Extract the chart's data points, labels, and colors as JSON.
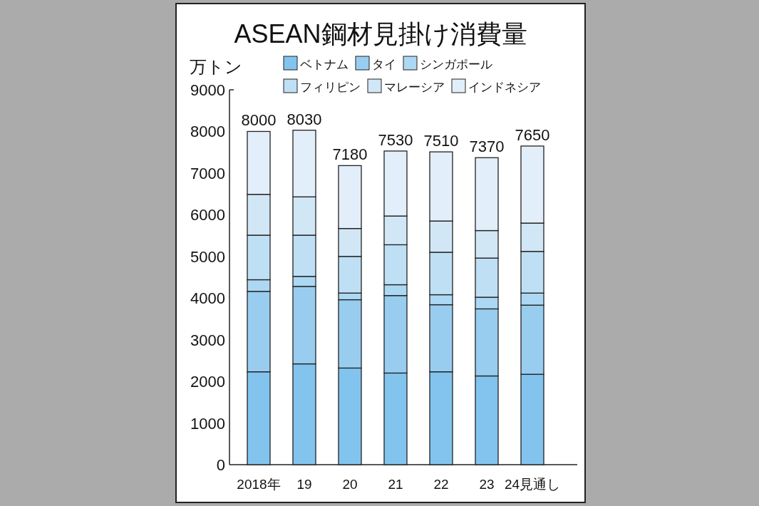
{
  "chart_data": {
    "type": "bar",
    "title": "ASEAN鋼材見掛け消費量",
    "ylabel": "万トン",
    "categories": [
      "2018年",
      "19",
      "20",
      "21",
      "22",
      "23",
      "24見通し"
    ],
    "stacked": true,
    "series": [
      {
        "name": "ベトナム",
        "color": "#82c4ee",
        "values": [
          2230,
          2420,
          2320,
          2200,
          2230,
          2130,
          2170
        ]
      },
      {
        "name": "タイ",
        "color": "#98cdf0",
        "values": [
          1930,
          1860,
          1640,
          1860,
          1610,
          1610,
          1660
        ]
      },
      {
        "name": "シンガポール",
        "color": "#acd8f4",
        "values": [
          280,
          240,
          160,
          260,
          240,
          280,
          290
        ]
      },
      {
        "name": "フィリピン",
        "color": "#bfdff4",
        "values": [
          1070,
          990,
          880,
          960,
          1020,
          940,
          1000
        ]
      },
      {
        "name": "マレーシア",
        "color": "#d2e7f6",
        "values": [
          980,
          920,
          670,
          690,
          750,
          660,
          680
        ]
      },
      {
        "name": "インドネシア",
        "color": "#e2eef9",
        "values": [
          1510,
          1600,
          1510,
          1560,
          1660,
          1750,
          1850
        ]
      }
    ],
    "totals": [
      "8000",
      "8030",
      "7180",
      "7530",
      "7510",
      "7370",
      "7650"
    ],
    "ylim": [
      0,
      9000
    ],
    "yticks": [
      0,
      1000,
      2000,
      3000,
      4000,
      5000,
      6000,
      7000,
      8000,
      9000
    ],
    "legend": "top"
  }
}
